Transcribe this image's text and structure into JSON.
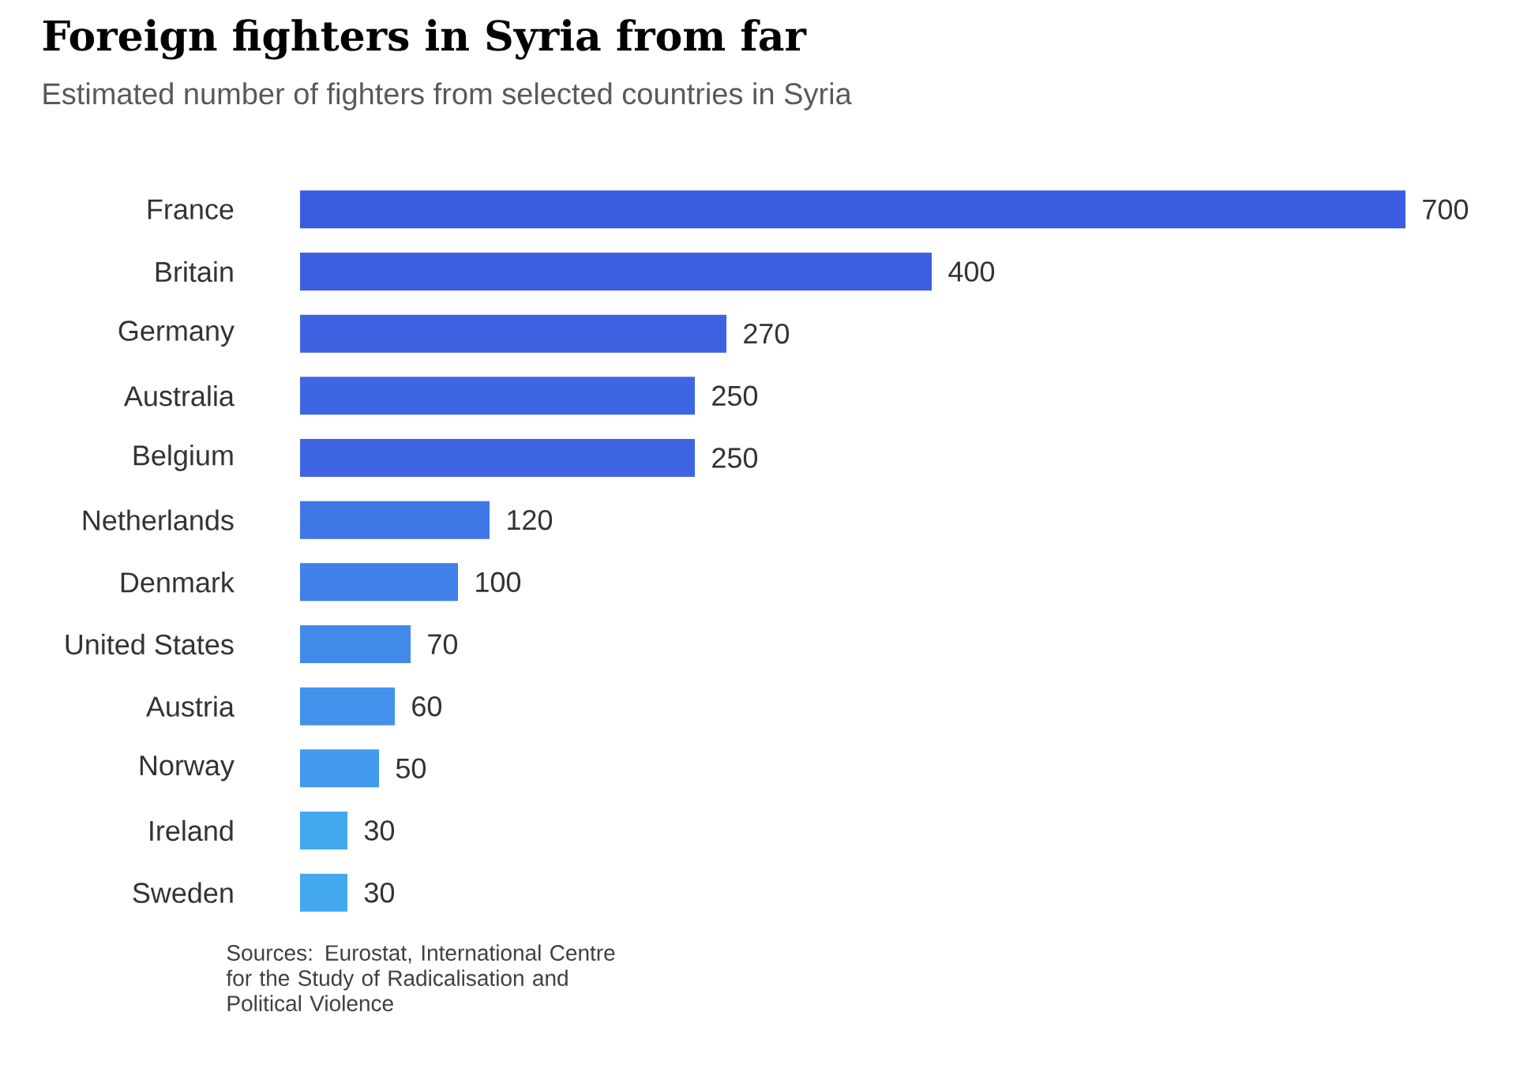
{
  "chart_data": {
    "type": "bar",
    "orientation": "horizontal",
    "title": "Foreign fighters in Syria from far",
    "subtitle": "Estimated number of fighters from selected countries in Syria",
    "categories": [
      "France",
      "Britain",
      "Germany",
      "Australia",
      "Belgium",
      "Netherlands",
      "Denmark",
      "United States",
      "Austria",
      "Norway",
      "Ireland",
      "Sweden"
    ],
    "values": [
      700,
      400,
      270,
      250,
      250,
      120,
      100,
      70,
      60,
      50,
      30,
      30
    ],
    "colors": [
      "#3a5ce0",
      "#3b5fe0",
      "#3d63e2",
      "#3e66e2",
      "#3e66e2",
      "#3f78e6",
      "#4080e8",
      "#418aea",
      "#4292ec",
      "#4299ed",
      "#43a8f0",
      "#43a8f0"
    ],
    "data_labels": true,
    "annotations": [
      "Sources: Eurostat, International Centre for the Study of Radicalisation and Political Violence"
    ]
  }
}
